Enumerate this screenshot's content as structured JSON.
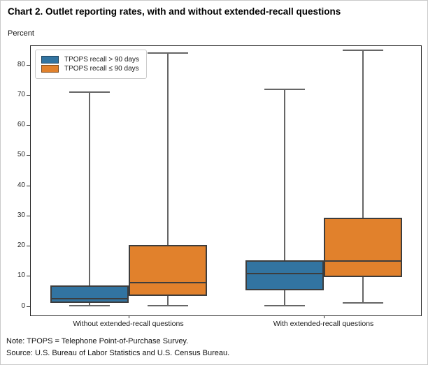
{
  "title": "Chart 2. Outlet reporting rates, with and without extended-recall questions",
  "y_axis_label": "Percent",
  "notes": {
    "note": "Note: TPOPS = Telephone Point-of-Purchase Survey.",
    "source": "Source: U.S. Bureau of Labor Statistics and U.S. Census Bureau."
  },
  "colors": {
    "series_blue": "#3274A1",
    "series_orange": "#E1812C",
    "box_edge": "#3D3D3D",
    "whisker": "#666666",
    "axis": "#262626"
  },
  "chart_data": {
    "type": "boxplot",
    "title": "Chart 2. Outlet reporting rates, with and without extended-recall questions",
    "ylabel": "Percent",
    "xlabel": "",
    "categories": [
      "Without extended-recall questions",
      "With extended-recall questions"
    ],
    "series": [
      {
        "name": "TPOPS recall > 90 days",
        "color": "#3274A1",
        "boxes": [
          {
            "whisker_low": 0.2,
            "q1": 1.2,
            "median": 2.6,
            "q3": 7.0,
            "whisker_high": 71.0
          },
          {
            "whisker_low": 0.3,
            "q1": 5.4,
            "median": 10.9,
            "q3": 15.3,
            "whisker_high": 72.0
          }
        ]
      },
      {
        "name": "TPOPS recall ≤ 90 days",
        "color": "#E1812C",
        "boxes": [
          {
            "whisker_low": 0.2,
            "q1": 3.5,
            "median": 7.9,
            "q3": 20.3,
            "whisker_high": 84.0
          },
          {
            "whisker_low": 1.2,
            "q1": 9.7,
            "median": 15.0,
            "q3": 29.5,
            "whisker_high": 85.0
          }
        ]
      }
    ],
    "yticks": [
      0,
      10,
      20,
      30,
      40,
      50,
      60,
      70,
      80
    ],
    "ylim": [
      -3.0,
      86.3
    ],
    "grid": false,
    "legend_position": "upper-left"
  }
}
